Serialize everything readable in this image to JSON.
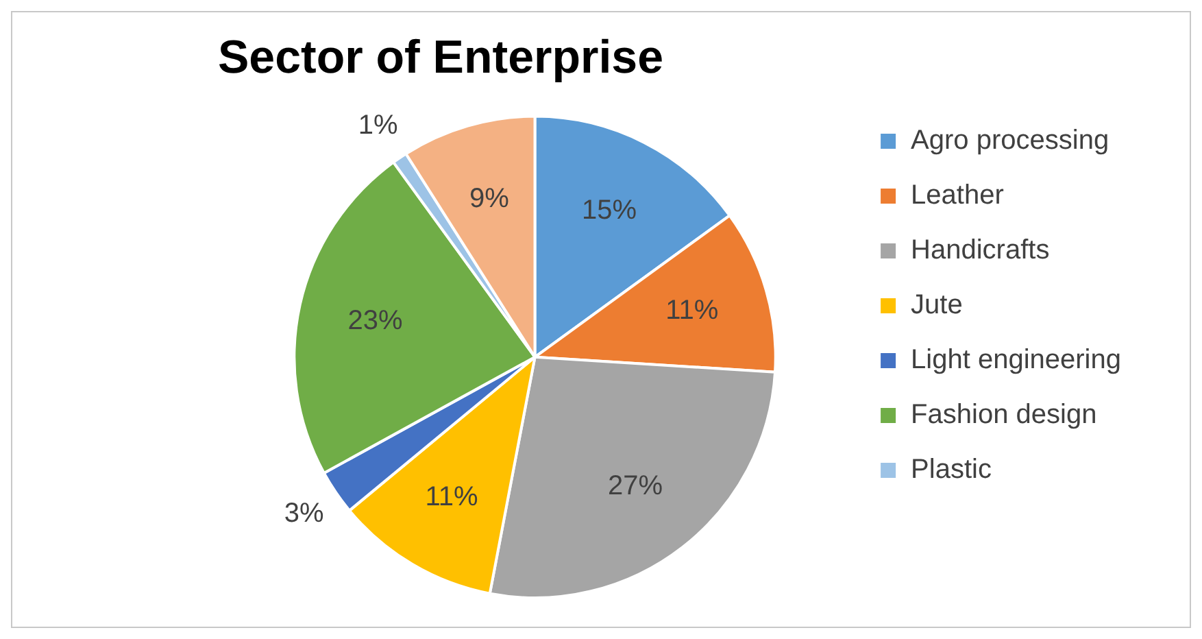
{
  "chart_data": {
    "type": "pie",
    "title": "Sector of Enterprise",
    "categories": [
      "Agro processing",
      "Leather",
      "Handicrafts",
      "Jute",
      "Light engineering",
      "Fashion design",
      "Plastic",
      null
    ],
    "values": [
      15,
      11,
      27,
      11,
      3,
      23,
      1,
      9
    ],
    "colors": [
      "#5b9bd5",
      "#ed7d31",
      "#a5a5a5",
      "#ffc000",
      "#4472c4",
      "#70ad47",
      "#9dc3e6",
      "#f4b183"
    ],
    "value_labels": [
      "15%",
      "11%",
      "27%",
      "11%",
      "3%",
      "23%",
      "1%",
      "9%"
    ],
    "legend": "right"
  }
}
